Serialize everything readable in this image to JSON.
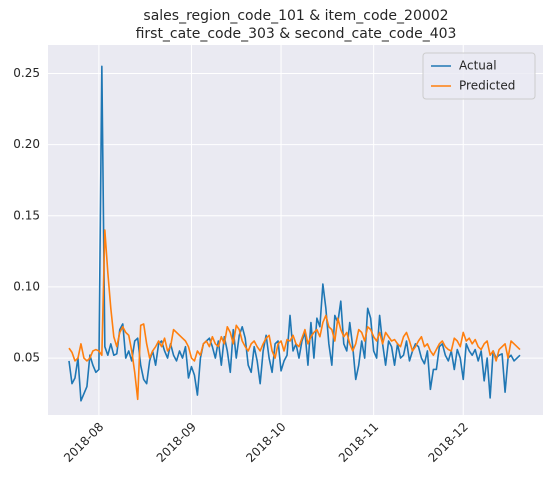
{
  "chart_data": {
    "type": "line",
    "title": [
      "sales_region_code_101 & item_code_20002",
      "first_cate_code_303 & second_cate_code_403"
    ],
    "categories": [
      null,
      null,
      null,
      null,
      null,
      null,
      null,
      null,
      null,
      null,
      "2018-08",
      null,
      null,
      null,
      null,
      null,
      null,
      null,
      null,
      null,
      null,
      null,
      null,
      null,
      null,
      null,
      null,
      null,
      null,
      null,
      null,
      null,
      null,
      null,
      null,
      null,
      null,
      null,
      null,
      null,
      null,
      "2018-09",
      null,
      null,
      null,
      null,
      null,
      null,
      null,
      null,
      null,
      null,
      null,
      null,
      null,
      null,
      null,
      null,
      null,
      null,
      null,
      null,
      null,
      null,
      null,
      null,
      null,
      null,
      null,
      null,
      null,
      "2018-10",
      null,
      null,
      null,
      null,
      null,
      null,
      null,
      null,
      null,
      null,
      null,
      null,
      null,
      null,
      null,
      null,
      null,
      null,
      null,
      null,
      null,
      null,
      null,
      null,
      null,
      null,
      null,
      null,
      null,
      null,
      "2018-11",
      null,
      null,
      null,
      null,
      null,
      null,
      null,
      null,
      null,
      null,
      null,
      null,
      null,
      null,
      null,
      null,
      null,
      null,
      null,
      null,
      null,
      null,
      null,
      null,
      null,
      null,
      null,
      null,
      null,
      "2018-12",
      null,
      null,
      null,
      null,
      null,
      null,
      null,
      null,
      null,
      null,
      null,
      null,
      null,
      null,
      null,
      null,
      null,
      null,
      null
    ],
    "series": [
      {
        "name": "Actual",
        "color": "#1f77b4",
        "values": [
          0.048,
          0.032,
          0.036,
          0.05,
          0.02,
          0.025,
          0.03,
          0.052,
          0.045,
          0.04,
          0.042,
          0.255,
          0.058,
          0.052,
          0.06,
          0.052,
          0.053,
          0.07,
          0.074,
          0.05,
          0.055,
          0.048,
          0.062,
          0.064,
          0.045,
          0.035,
          0.032,
          0.048,
          0.055,
          0.045,
          0.06,
          0.062,
          0.055,
          0.05,
          0.06,
          0.052,
          0.048,
          0.055,
          0.05,
          0.058,
          0.036,
          0.044,
          0.038,
          0.024,
          0.05,
          0.06,
          0.062,
          0.064,
          0.058,
          0.05,
          0.062,
          0.045,
          0.065,
          0.055,
          0.04,
          0.07,
          0.05,
          0.066,
          0.072,
          0.064,
          0.045,
          0.04,
          0.058,
          0.048,
          0.032,
          0.055,
          0.066,
          0.05,
          0.04,
          0.06,
          0.062,
          0.041,
          0.048,
          0.052,
          0.08,
          0.055,
          0.06,
          0.05,
          0.062,
          0.068,
          0.045,
          0.075,
          0.05,
          0.078,
          0.072,
          0.102,
          0.085,
          0.06,
          0.045,
          0.08,
          0.075,
          0.09,
          0.06,
          0.055,
          0.075,
          0.058,
          0.035,
          0.045,
          0.062,
          0.05,
          0.085,
          0.078,
          0.055,
          0.05,
          0.08,
          0.06,
          0.045,
          0.062,
          0.058,
          0.045,
          0.06,
          0.05,
          0.052,
          0.062,
          0.048,
          0.055,
          0.06,
          0.058,
          0.05,
          0.046,
          0.055,
          0.028,
          0.042,
          0.042,
          0.058,
          0.06,
          0.052,
          0.048,
          0.055,
          0.042,
          0.056,
          0.05,
          0.035,
          0.06,
          0.055,
          0.052,
          0.056,
          0.048,
          0.055,
          0.034,
          0.05,
          0.022,
          0.055,
          0.05,
          0.052,
          0.053,
          0.026,
          0.05,
          0.052,
          0.048,
          0.05,
          0.052
        ]
      },
      {
        "name": "Predicted",
        "color": "#ff7f0e",
        "values": [
          0.057,
          0.054,
          0.048,
          0.05,
          0.06,
          0.05,
          0.048,
          0.05,
          0.055,
          0.056,
          0.055,
          0.052,
          0.14,
          0.11,
          0.085,
          0.065,
          0.058,
          0.068,
          0.072,
          0.068,
          0.066,
          0.055,
          0.04,
          0.021,
          0.073,
          0.074,
          0.06,
          0.05,
          0.055,
          0.058,
          0.062,
          0.058,
          0.064,
          0.055,
          0.058,
          0.07,
          0.068,
          0.066,
          0.064,
          0.062,
          0.058,
          0.05,
          0.048,
          0.055,
          0.052,
          0.06,
          0.062,
          0.058,
          0.065,
          0.06,
          0.058,
          0.065,
          0.06,
          0.072,
          0.068,
          0.06,
          0.073,
          0.07,
          0.062,
          0.058,
          0.055,
          0.06,
          0.062,
          0.058,
          0.055,
          0.06,
          0.064,
          0.066,
          0.055,
          0.05,
          0.06,
          0.062,
          0.055,
          0.063,
          0.062,
          0.066,
          0.06,
          0.058,
          0.064,
          0.07,
          0.06,
          0.065,
          0.068,
          0.07,
          0.065,
          0.075,
          0.08,
          0.072,
          0.07,
          0.062,
          0.078,
          0.07,
          0.065,
          0.068,
          0.06,
          0.055,
          0.06,
          0.07,
          0.068,
          0.062,
          0.072,
          0.07,
          0.065,
          0.062,
          0.068,
          0.06,
          0.068,
          0.065,
          0.062,
          0.063,
          0.06,
          0.058,
          0.065,
          0.068,
          0.062,
          0.055,
          0.058,
          0.062,
          0.065,
          0.058,
          0.06,
          0.055,
          0.052,
          0.056,
          0.06,
          0.062,
          0.058,
          0.056,
          0.055,
          0.064,
          0.062,
          0.058,
          0.068,
          0.062,
          0.064,
          0.06,
          0.063,
          0.058,
          0.056,
          0.06,
          0.062,
          0.052,
          0.055,
          0.048,
          0.056,
          0.058,
          0.06,
          0.05,
          0.062,
          0.06,
          0.058,
          0.056
        ]
      }
    ],
    "ylim": [
      0.01,
      0.27
    ],
    "yticks": [
      0.05,
      {
        "value": 0.1,
        "label": "0.10"
      },
      0.15,
      {
        "value": 0.2,
        "label": "0.20"
      },
      0.25
    ],
    "grid": true,
    "legend": "upper right"
  }
}
